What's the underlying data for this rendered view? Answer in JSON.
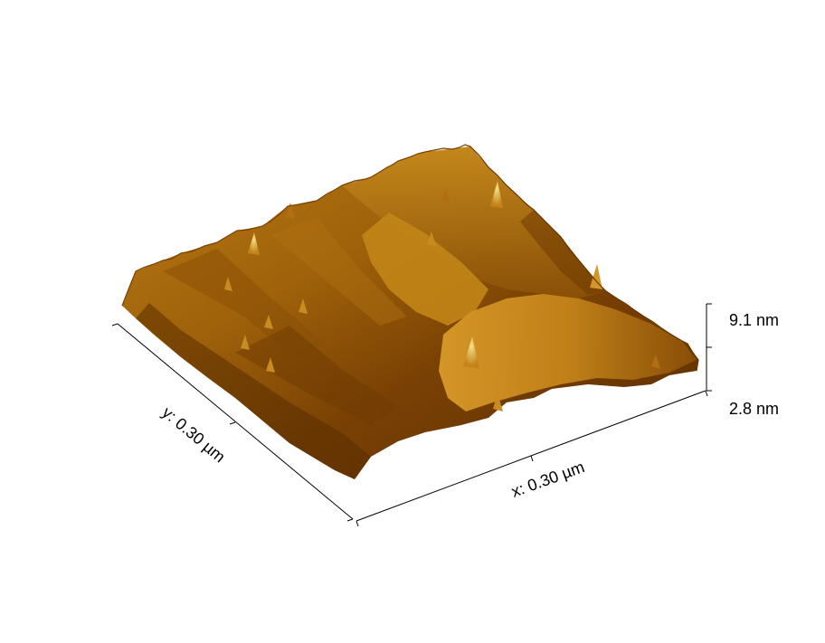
{
  "axes": {
    "x_label": "x: 0.30 µm",
    "y_label": "y: 0.30 µm",
    "z_max_label": "9.1 nm",
    "z_min_label": "2.8 nm"
  },
  "colors": {
    "surface_dark": "#5a2d00",
    "surface_mid": "#a0620a",
    "surface_light": "#d89a28",
    "surface_highlight": "#f4e08a",
    "background": "#ffffff",
    "axis": "#000000"
  }
}
